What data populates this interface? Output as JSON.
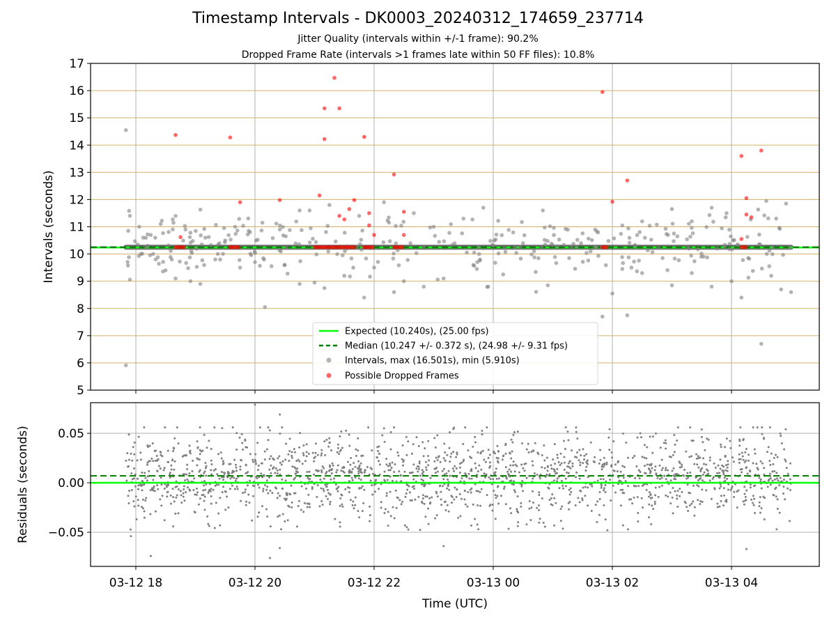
{
  "figure": {
    "title": "Timestamp Intervals - DK0003_20240312_174659_237714",
    "subtitle1": "Jitter Quality (intervals within +/-1 frame): 90.2%",
    "subtitle2": "Dropped Frame Rate (intervals >1 frames late within 50 FF files): 10.8%"
  },
  "colors": {
    "expected": "#00ff00",
    "median": "#007f00",
    "intervals": "#808080",
    "dropped": "#ff0000",
    "hgrid": "#c8a040",
    "vgrid": "#b0b0b0",
    "trend": "#505050"
  },
  "chart_data": [
    {
      "type": "scatter",
      "ylabel": "Intervals (seconds)",
      "ylim": [
        5,
        17
      ],
      "yticks": [
        5,
        6,
        7,
        8,
        9,
        10,
        11,
        12,
        13,
        14,
        15,
        16,
        17
      ],
      "x_time_range": [
        "03-12 17:30",
        "03-13 05:30"
      ],
      "xticks": [
        "03-12 18",
        "03-12 20",
        "03-12 22",
        "03-13 00",
        "03-13 02",
        "03-13 04"
      ],
      "grid": true,
      "legend_position": "lower-center",
      "legend": [
        "Expected (10.240s), (25.00 fps)",
        "Median (10.247 +/- 0.372 s), (24.98 +/- 9.31 fps)",
        "Intervals, max (16.501s), min (5.910s)",
        "Possible Dropped Frames"
      ],
      "expected": 10.24,
      "median": 10.247,
      "series": [
        {
          "name": "Intervals, max (16.501s), min (5.910s)",
          "points": [
            [
              "03-12 17:50",
              14.55
            ],
            [
              "03-12 17:50",
              5.91
            ],
            [
              "03-12 17:54",
              11.4
            ],
            [
              "03-12 17:54",
              9.06
            ],
            [
              "03-12 18:02",
              10.35
            ],
            [
              "03-12 18:05",
              10.0
            ],
            [
              "03-12 18:10",
              10.25
            ],
            [
              "03-12 18:15",
              10.7
            ],
            [
              "03-12 18:20",
              9.8
            ],
            [
              "03-12 18:25",
              11.1
            ],
            [
              "03-12 18:30",
              9.4
            ],
            [
              "03-12 18:40",
              11.4
            ],
            [
              "03-12 18:40",
              9.1
            ],
            [
              "03-12 18:50",
              10.9
            ],
            [
              "03-12 18:55",
              9.0
            ],
            [
              "03-12 19:05",
              11.63
            ],
            [
              "03-12 19:05",
              8.9
            ],
            [
              "03-12 19:10",
              10.6
            ],
            [
              "03-12 19:20",
              9.8
            ],
            [
              "03-12 19:30",
              10.5
            ],
            [
              "03-12 19:40",
              11.0
            ],
            [
              "03-12 19:45",
              9.5
            ],
            [
              "03-12 19:55",
              10.8
            ],
            [
              "03-12 20:00",
              9.7
            ],
            [
              "03-12 20:10",
              8.05
            ],
            [
              "03-12 20:25",
              10.9
            ],
            [
              "03-12 20:30",
              9.6
            ],
            [
              "03-12 20:45",
              11.6
            ],
            [
              "03-12 20:45",
              8.9
            ],
            [
              "03-12 20:55",
              11.6
            ],
            [
              "03-12 21:00",
              8.95
            ],
            [
              "03-12 21:10",
              8.75
            ],
            [
              "03-12 21:15",
              11.8
            ],
            [
              "03-12 21:30",
              9.2
            ],
            [
              "03-12 21:45",
              11.4
            ],
            [
              "03-12 21:50",
              8.4
            ],
            [
              "03-12 22:00",
              9.5
            ],
            [
              "03-12 22:10",
              11.9
            ],
            [
              "03-12 22:20",
              8.6
            ],
            [
              "03-12 22:30",
              9.0
            ],
            [
              "03-12 22:40",
              11.5
            ],
            [
              "03-12 22:50",
              8.8
            ],
            [
              "03-12 23:00",
              11.0
            ],
            [
              "03-12 23:10",
              9.1
            ],
            [
              "03-12 23:30",
              11.3
            ],
            [
              "03-12 23:40",
              9.6
            ],
            [
              "03-12 23:50",
              11.7
            ],
            [
              "03-12 23:55",
              8.8
            ],
            [
              "03-13 00:05",
              11.22
            ],
            [
              "03-13 00:10",
              9.25
            ],
            [
              "03-13 00:30",
              10.4
            ],
            [
              "03-13 00:50",
              11.6
            ],
            [
              "03-13 00:55",
              8.85
            ],
            [
              "03-13 01:50",
              7.7
            ],
            [
              "03-13 02:00",
              8.55
            ],
            [
              "03-13 02:10",
              11.05
            ],
            [
              "03-13 02:10",
              9.45
            ],
            [
              "03-13 02:15",
              7.75
            ],
            [
              "03-13 02:30",
              11.2
            ],
            [
              "03-13 02:30",
              9.3
            ],
            [
              "03-13 03:00",
              11.65
            ],
            [
              "03-13 03:00",
              8.85
            ],
            [
              "03-13 03:20",
              11.2
            ],
            [
              "03-13 03:20",
              9.3
            ],
            [
              "03-13 03:40",
              11.7
            ],
            [
              "03-13 03:40",
              8.8
            ],
            [
              "03-13 03:55",
              11.5
            ],
            [
              "03-13 04:00",
              9.0
            ],
            [
              "03-13 04:10",
              8.4
            ],
            [
              "03-13 04:30",
              6.7
            ],
            [
              "03-13 04:35",
              11.95
            ],
            [
              "03-13 04:40",
              9.2
            ],
            [
              "03-13 04:45",
              11.3
            ],
            [
              "03-13 04:50",
              8.7
            ],
            [
              "03-13 04:55",
              11.85
            ],
            [
              "03-13 05:00",
              8.6
            ]
          ]
        },
        {
          "name": "Possible Dropped Frames",
          "points": [
            [
              "03-12 18:40",
              14.37
            ],
            [
              "03-12 18:45",
              10.62
            ],
            [
              "03-12 19:35",
              14.28
            ],
            [
              "03-12 19:45",
              11.9
            ],
            [
              "03-12 20:25",
              11.98
            ],
            [
              "03-12 21:05",
              12.15
            ],
            [
              "03-12 21:10",
              15.35
            ],
            [
              "03-12 21:10",
              14.22
            ],
            [
              "03-12 21:20",
              16.47
            ],
            [
              "03-12 21:25",
              15.35
            ],
            [
              "03-12 21:25",
              11.4
            ],
            [
              "03-12 21:30",
              11.27
            ],
            [
              "03-12 21:35",
              11.65
            ],
            [
              "03-12 21:40",
              11.98
            ],
            [
              "03-12 21:50",
              14.3
            ],
            [
              "03-12 21:55",
              11.5
            ],
            [
              "03-12 21:55",
              11.05
            ],
            [
              "03-12 22:00",
              10.7
            ],
            [
              "03-12 22:20",
              12.92
            ],
            [
              "03-12 22:30",
              11.55
            ],
            [
              "03-12 22:30",
              10.7
            ],
            [
              "03-13 01:50",
              15.95
            ],
            [
              "03-13 02:00",
              11.92
            ],
            [
              "03-13 02:15",
              12.7
            ],
            [
              "03-13 04:10",
              13.6
            ],
            [
              "03-13 04:15",
              12.05
            ],
            [
              "03-13 04:15",
              11.45
            ],
            [
              "03-13 04:20",
              11.35
            ],
            [
              "03-13 04:30",
              13.8
            ],
            [
              "03-13 04:10",
              10.55
            ]
          ]
        }
      ],
      "dropped_clusters_near_median": [
        [
          "03-12 18:40",
          "03-12 18:50"
        ],
        [
          "03-12 19:35",
          "03-12 19:45"
        ],
        [
          "03-12 21:00",
          "03-12 21:40"
        ],
        [
          "03-12 21:50",
          "03-12 22:00"
        ],
        [
          "03-12 22:20",
          "03-12 22:30"
        ],
        [
          "03-13 01:50",
          "03-13 01:55"
        ],
        [
          "03-13 04:10",
          "03-13 04:15"
        ]
      ]
    },
    {
      "type": "scatter",
      "ylabel": "Residuals (seconds)",
      "xlabel": "Time (UTC)",
      "ylim": [
        -0.08,
        0.08
      ],
      "yticks": [
        -0.05,
        0.0,
        0.05
      ],
      "ytick_labels": [
        "−0.05",
        "0.00",
        "0.05"
      ],
      "xticks": [
        "03-12 18",
        "03-12 20",
        "03-12 22",
        "03-13 00",
        "03-13 02",
        "03-13 04"
      ],
      "grid": true,
      "expected_residual": 0.0,
      "median_residual": 0.007,
      "residual_distribution": {
        "mean": 0.007,
        "std": 0.021,
        "count": 1800,
        "x_range": [
          "03-12 17:50",
          "03-13 05:00"
        ]
      },
      "outliers": [
        [
          "03-12 20:00",
          0.079
        ],
        [
          "03-12 20:15",
          -0.076
        ],
        [
          "03-12 20:15",
          0.053
        ],
        [
          "03-12 20:25",
          0.069
        ],
        [
          "03-12 20:25",
          -0.066
        ],
        [
          "03-12 18:15",
          -0.074
        ],
        [
          "03-12 17:55",
          -0.054
        ],
        [
          "03-12 22:10",
          0.055
        ],
        [
          "03-12 23:10",
          -0.064
        ],
        [
          "03-12 23:45",
          -0.047
        ],
        [
          "03-13 01:55",
          -0.048
        ],
        [
          "03-13 04:15",
          -0.067
        ],
        [
          "03-13 03:30",
          0.054
        ]
      ]
    }
  ]
}
